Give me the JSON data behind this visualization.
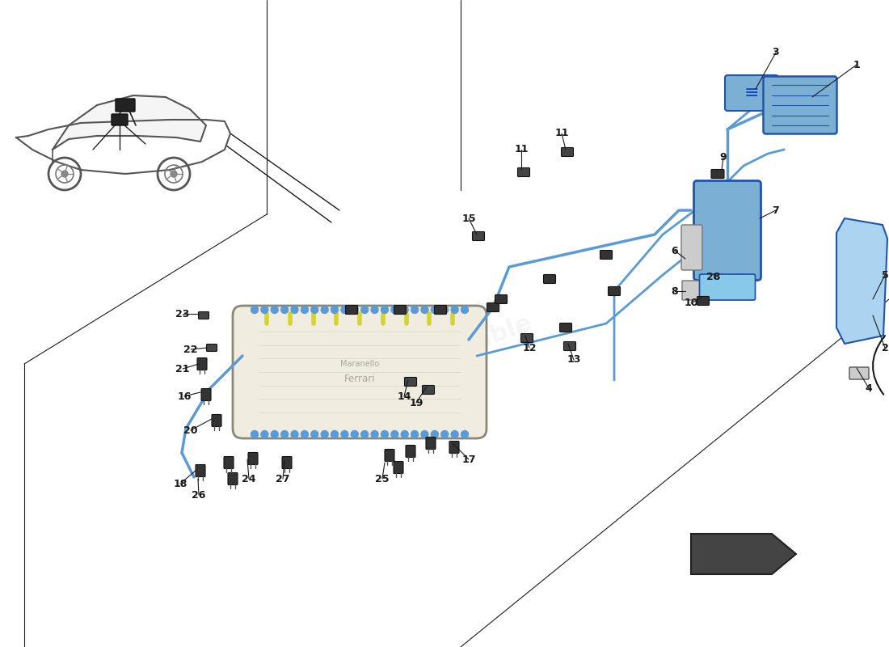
{
  "bg_color": "#ffffff",
  "line_color": "#1a1a1a",
  "blue_color": "#5b9bd5",
  "light_blue": "#bdd7ee",
  "yellow_color": "#d4d430",
  "dark_blue": "#2255aa",
  "canister_color": "#7bafd4",
  "shield_color": "#aad4f0",
  "tank_color": "#f0ede0",
  "gray_color": "#cccccc",
  "dark_gray": "#333333",
  "connector_color": "#333333",
  "fig_width": 11.0,
  "fig_height": 8.0,
  "dpi": 100,
  "part_labels": [
    [
      1060,
      80,
      1005,
      120,
      1
    ],
    [
      1095,
      430,
      1080,
      390,
      2
    ],
    [
      960,
      65,
      935,
      110,
      3
    ],
    [
      1075,
      480,
      1060,
      455,
      4
    ],
    [
      1095,
      340,
      1080,
      370,
      5
    ],
    [
      835,
      310,
      848,
      320,
      6
    ],
    [
      960,
      260,
      940,
      270,
      7
    ],
    [
      835,
      360,
      848,
      360,
      8
    ],
    [
      895,
      195,
      893,
      210,
      9
    ],
    [
      855,
      375,
      868,
      368,
      10
    ],
    [
      645,
      185,
      645,
      210,
      11
    ],
    [
      695,
      165,
      700,
      185,
      11
    ],
    [
      655,
      430,
      650,
      415,
      12
    ],
    [
      710,
      445,
      703,
      425,
      13
    ],
    [
      500,
      490,
      505,
      470,
      14
    ],
    [
      580,
      270,
      590,
      290,
      15
    ],
    [
      228,
      490,
      248,
      485,
      16
    ],
    [
      580,
      568,
      560,
      548,
      17
    ],
    [
      223,
      598,
      242,
      582,
      18
    ],
    [
      515,
      498,
      528,
      478,
      19
    ],
    [
      236,
      532,
      262,
      518,
      20
    ],
    [
      226,
      456,
      246,
      450,
      21
    ],
    [
      236,
      432,
      256,
      430,
      22
    ],
    [
      226,
      388,
      246,
      388,
      23
    ],
    [
      308,
      592,
      306,
      568,
      24
    ],
    [
      473,
      592,
      476,
      572,
      25
    ],
    [
      246,
      612,
      245,
      592,
      26
    ],
    [
      350,
      592,
      352,
      570,
      27
    ],
    [
      883,
      343,
      883,
      338,
      28
    ]
  ]
}
